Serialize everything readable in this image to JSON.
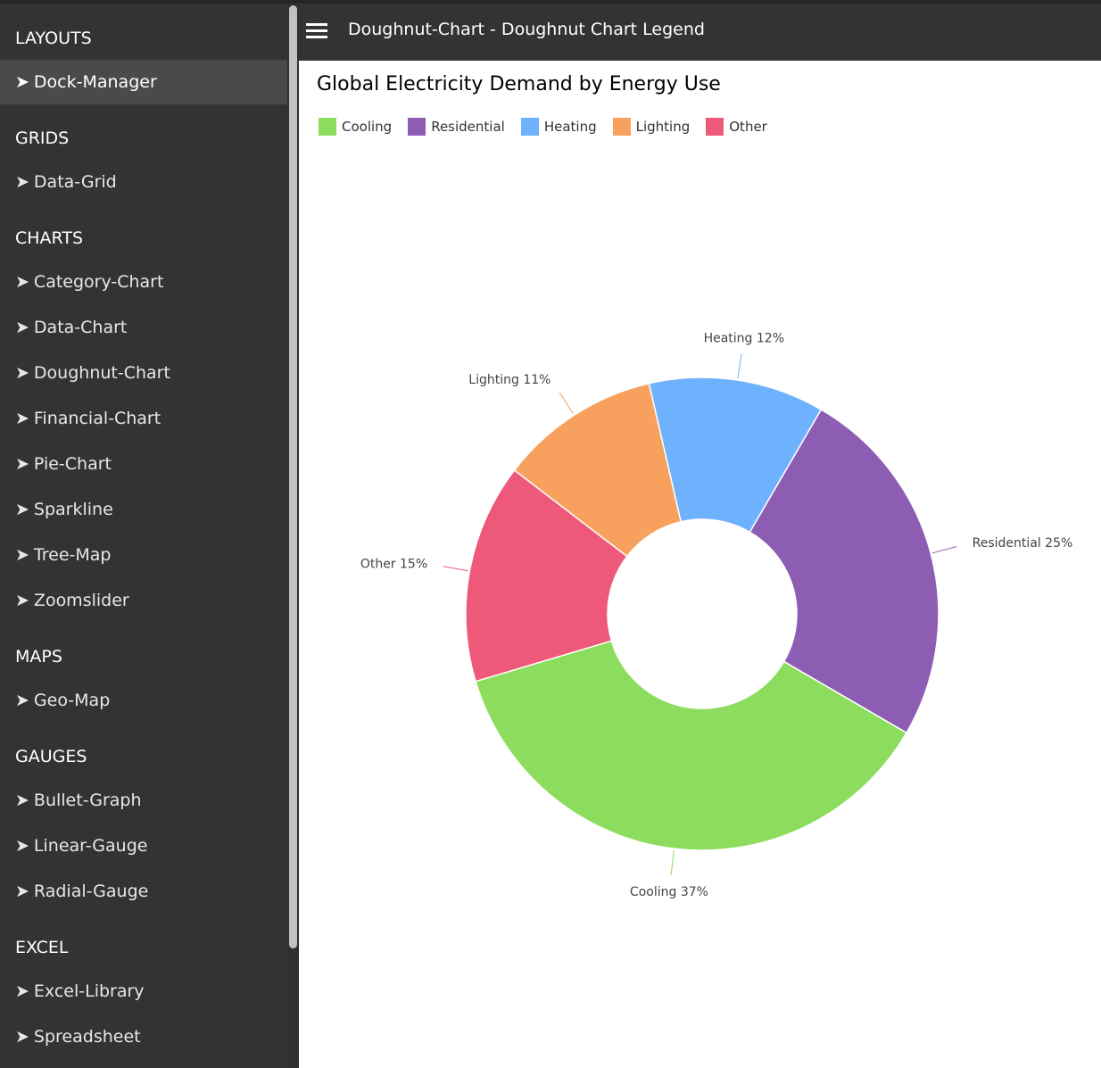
{
  "sidebar": {
    "sections": [
      {
        "title": "LAYOUTS",
        "items": [
          "Dock-Manager"
        ]
      },
      {
        "title": "GRIDS",
        "items": [
          "Data-Grid"
        ]
      },
      {
        "title": "CHARTS",
        "items": [
          "Category-Chart",
          "Data-Chart",
          "Doughnut-Chart",
          "Financial-Chart",
          "Pie-Chart",
          "Sparkline",
          "Tree-Map",
          "Zoomslider"
        ]
      },
      {
        "title": "MAPS",
        "items": [
          "Geo-Map"
        ]
      },
      {
        "title": "GAUGES",
        "items": [
          "Bullet-Graph",
          "Linear-Gauge",
          "Radial-Gauge"
        ]
      },
      {
        "title": "EXCEL",
        "items": [
          "Excel-Library",
          "Spreadsheet"
        ]
      }
    ],
    "active_item": "Dock-Manager",
    "arrow": "➤"
  },
  "header": {
    "title": "Doughnut-Chart - Doughnut Chart Legend",
    "menu_icon": "hamburger-icon"
  },
  "chart_data": {
    "type": "pie",
    "title": "Global Electricity Demand by Energy Use",
    "legend_position": "top-left",
    "slices": [
      {
        "label": "Cooling",
        "value": 37,
        "color": "#8cdd5d",
        "callout": "Cooling 37%"
      },
      {
        "label": "Residential",
        "value": 25,
        "color": "#8d5cb3",
        "callout": "Residential 25%"
      },
      {
        "label": "Heating",
        "value": 12,
        "color": "#6eb1fd",
        "callout": "Heating 12%"
      },
      {
        "label": "Lighting",
        "value": 11,
        "color": "#f8a15f",
        "callout": "Lighting 11%"
      },
      {
        "label": "Other",
        "value": 15,
        "color": "#ee5879",
        "callout": "Other 15%"
      }
    ],
    "doughnut": true
  }
}
